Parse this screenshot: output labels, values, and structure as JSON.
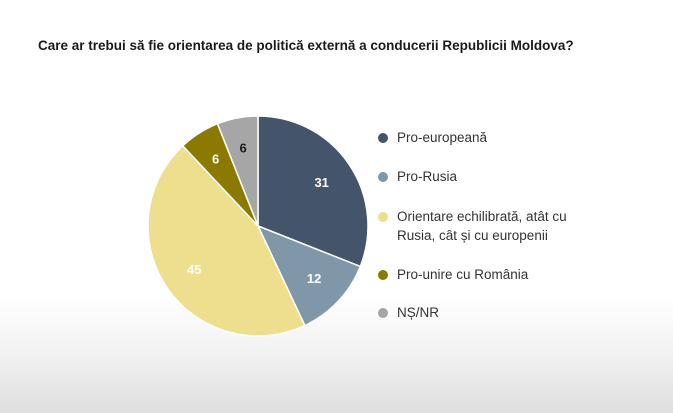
{
  "chart_data": {
    "type": "pie",
    "title": "Care ar trebui să fie orientarea de politică externă a conducerii Republicii Moldova?",
    "slices": [
      {
        "label": "Pro-europeană",
        "value": 31,
        "color": "#44546A"
      },
      {
        "label": "Pro-Rusia",
        "value": 12,
        "color": "#7F97A9"
      },
      {
        "label": "Orientare echilibrată, atât cu Rusia, cât și cu europenii",
        "value": 45,
        "color": "#EDDF8D"
      },
      {
        "label": "Pro-unire cu România",
        "value": 6,
        "color": "#8C7A00"
      },
      {
        "label": "NȘ/NR",
        "value": 6,
        "color": "#A6A6A6"
      }
    ],
    "legend_position": "right"
  }
}
